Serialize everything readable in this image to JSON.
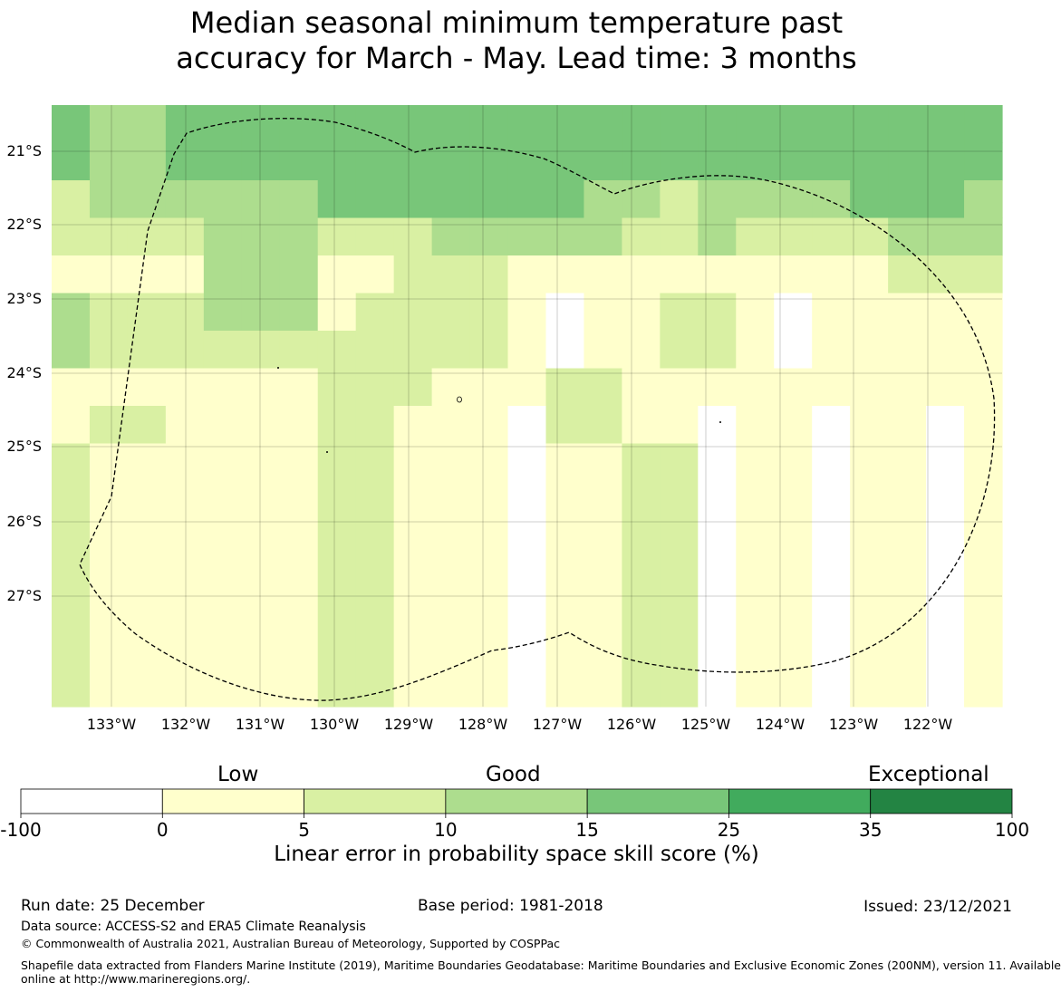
{
  "title_lines": [
    "Median seasonal minimum temperature past",
    "accuracy for March - May. Lead time: 3 months"
  ],
  "map": {
    "lon_labels": [
      "133°W",
      "132°W",
      "131°W",
      "130°W",
      "129°W",
      "128°W",
      "127°W",
      "126°W",
      "125°W",
      "124°W",
      "123°W",
      "122°W"
    ],
    "lat_labels": [
      "21°S",
      "22°S",
      "23°S",
      "24°S",
      "25°S",
      "26°S",
      "27°S"
    ],
    "grid_colors": [
      "#ffffff",
      "#ffffcc",
      "#d9f0a3",
      "#addd8e",
      "#78c679",
      "#41ab5d",
      "#238443"
    ],
    "grid_levels": [
      "4334444444444444444444444",
      "4334444444444444444444444",
      "2333333444444433233334443",
      "2222333222333332232222333",
      "1111333112221111111111222",
      "3222333122221011221011111",
      "3222222222221011221011111",
      "1111111222111221111111111",
      "1221111221110221101101101",
      "2111111221110112201101101",
      "2111111221110112201101101",
      "2111111221110112201101101",
      "2111111221110112201101101",
      "2111111221110112201101101",
      "2111111221110112201101101",
      "2111111221110112201101101"
    ]
  },
  "colorbar": {
    "categories": [
      "Low",
      "Good",
      "Exceptional"
    ],
    "ticks": [
      "-100",
      "0",
      "5",
      "10",
      "15",
      "25",
      "35",
      "100"
    ],
    "colors": [
      "#ffffff",
      "#ffffcc",
      "#d9f0a3",
      "#addd8e",
      "#78c679",
      "#41ab5d",
      "#238443"
    ],
    "label": "Linear error in probability space skill score (%)"
  },
  "footer": {
    "run_date": "Run date: 25 December",
    "base_period": "Base period: 1981-2018",
    "issued": "Issued: 23/12/2021",
    "data_source": "Data source: ACCESS-S2 and ERA5 Climate Reanalysis",
    "copyright": "© Commonwealth of Australia 2021, Australian Bureau of Meteorology, Supported by COSPPac",
    "shapefile_line1": "Shapefile data extracted from Flanders Marine Institute (2019), Maritime Boundaries Geodatabase: Maritime Boundaries and Exclusive Economic Zones (200NM), version 11. Available",
    "shapefile_line2": "online at http://www.marineregions.org/."
  }
}
